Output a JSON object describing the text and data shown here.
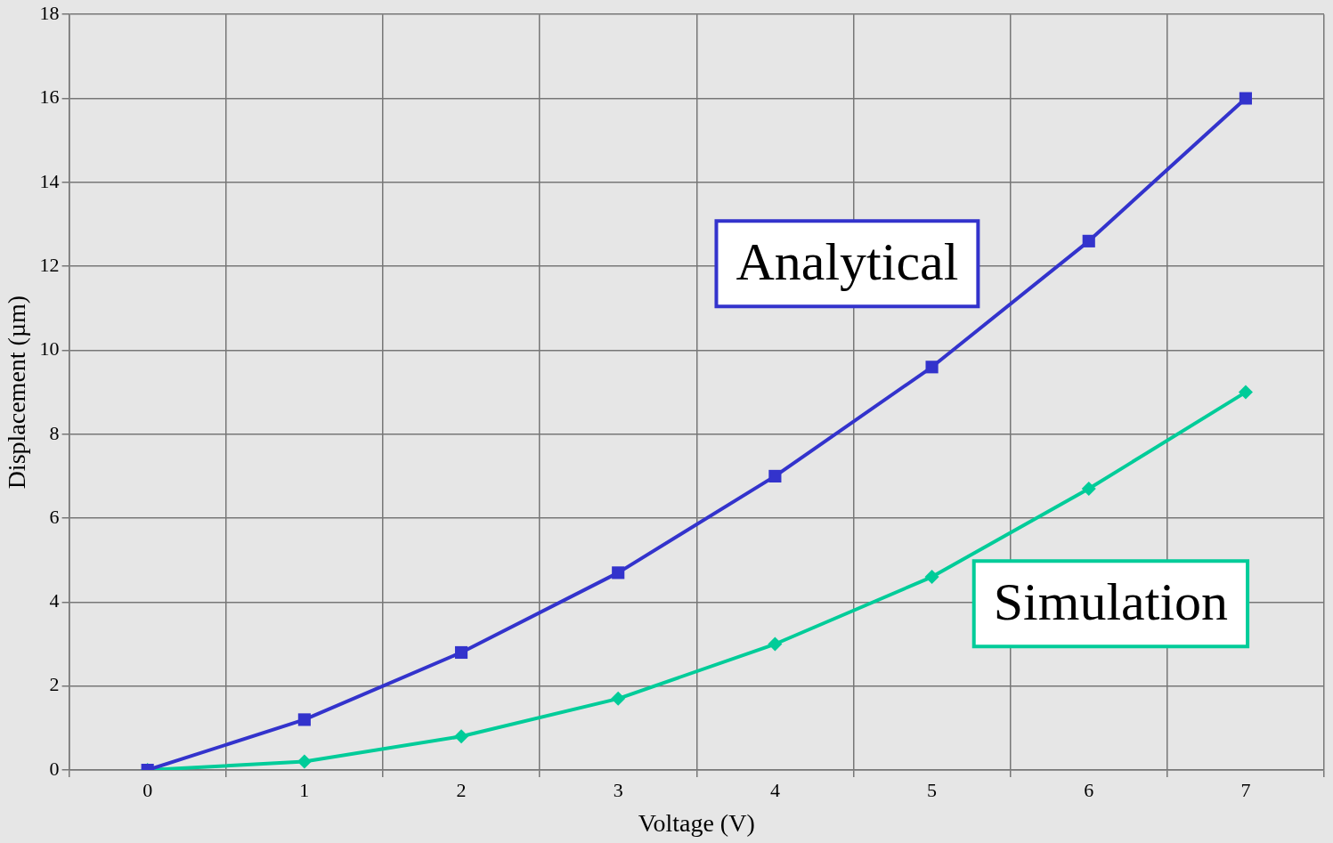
{
  "chart_data": {
    "type": "line",
    "xlabel": "Voltage (V)",
    "ylabel": "Displacement (µm)",
    "categories": [
      "0",
      "1",
      "2",
      "3",
      "4",
      "5",
      "6",
      "7"
    ],
    "series": [
      {
        "name": "Analytical",
        "color": "#3333cc",
        "marker": "square",
        "values": [
          0,
          1.2,
          2.8,
          4.7,
          7.0,
          9.6,
          12.6,
          16.0
        ]
      },
      {
        "name": "Simulation",
        "color": "#00cc99",
        "marker": "diamond",
        "values": [
          0,
          0.2,
          0.8,
          1.7,
          3.0,
          4.6,
          6.7,
          9.0
        ]
      }
    ],
    "ylim": [
      0,
      18
    ],
    "yticks": [
      0,
      2,
      4,
      6,
      8,
      10,
      12,
      14,
      16,
      18
    ],
    "grid": true,
    "legend": false
  }
}
